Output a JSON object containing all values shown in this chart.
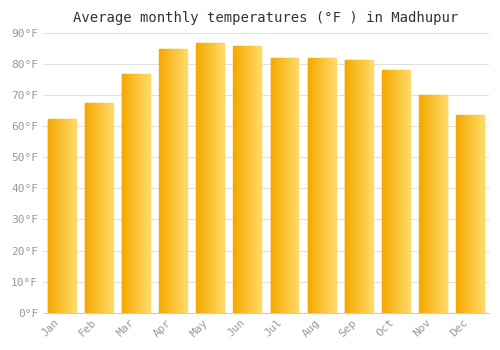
{
  "title": "Average monthly temperatures (°F ) in Madhupur",
  "months": [
    "Jan",
    "Feb",
    "Mar",
    "Apr",
    "May",
    "Jun",
    "Jul",
    "Aug",
    "Sep",
    "Oct",
    "Nov",
    "Dec"
  ],
  "values": [
    62.5,
    67.5,
    77,
    85,
    87,
    86,
    82,
    82,
    81.5,
    78,
    70,
    63.5
  ],
  "bar_color_left": "#F5A800",
  "bar_color_right": "#FFD966",
  "ylim": [
    0,
    90
  ],
  "yticks": [
    0,
    10,
    20,
    30,
    40,
    50,
    60,
    70,
    80,
    90
  ],
  "ytick_labels": [
    "0°F",
    "10°F",
    "20°F",
    "30°F",
    "40°F",
    "50°F",
    "60°F",
    "70°F",
    "80°F",
    "90°F"
  ],
  "background_color": "#ffffff",
  "plot_bg_color": "#ffffff",
  "grid_color": "#e0e0e0",
  "title_fontsize": 10,
  "tick_fontsize": 8,
  "tick_color": "#999999",
  "bar_width": 0.75,
  "bar_gap_color": "#ffffff"
}
